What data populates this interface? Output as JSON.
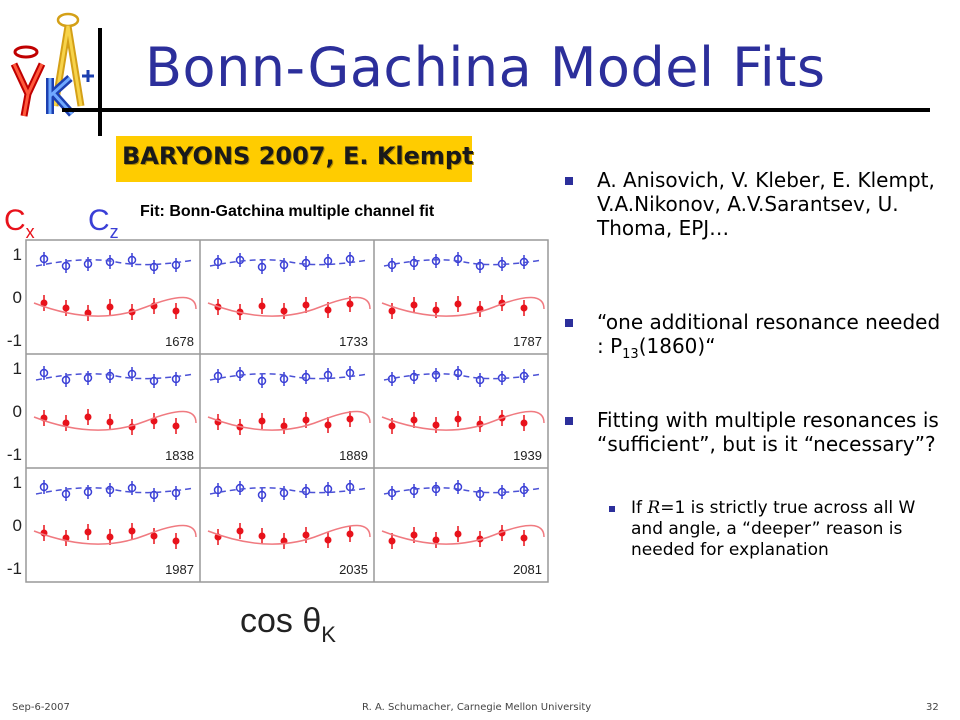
{
  "logo": {
    "alt": "gamma K+ logo"
  },
  "slide": {
    "title": "Bonn-Gachina Model Fits",
    "badge": "BARYONS 2007, E. Klempt",
    "figure_caption": "Fit: Bonn-Gatchina multiple channel fit"
  },
  "figure": {
    "label_cx": "C",
    "label_cx_sub": "x",
    "label_cz": "C",
    "label_cz_sub": "z",
    "x_axis_label": "cos θ",
    "x_axis_sub": "K",
    "y_ticks": [
      "1",
      "0",
      "-1"
    ],
    "panels": [
      "1678",
      "1733",
      "1787",
      "1838",
      "1889",
      "1939",
      "1987",
      "2035",
      "2081"
    ],
    "colors": {
      "cx": "#e8121b",
      "cz": "#3a3fd6",
      "cx_curve": "#f07a80",
      "cz_curve": "#4c52d6"
    }
  },
  "bullets": {
    "b1": "A. Anisovich, V. Kleber, E. Klempt, V.A.Nikonov, A.V.Sarantsev, U. Thoma, EPJ…",
    "b2_pre": "“one additional resonance needed : P",
    "b2_sub": "13",
    "b2_post": "(1860)“",
    "b3": "Fitting with multiple resonances is “sufficient”, but is it “necessary”?",
    "sub_pre": "If ",
    "sub_r": "R",
    "sub_post": "=1 is strictly true across all W and angle, a “deeper” reason is needed for explanation"
  },
  "footer": {
    "date": "Sep-6-2007",
    "author": "R. A. Schumacher, Carnegie Mellon University",
    "page": "32"
  }
}
